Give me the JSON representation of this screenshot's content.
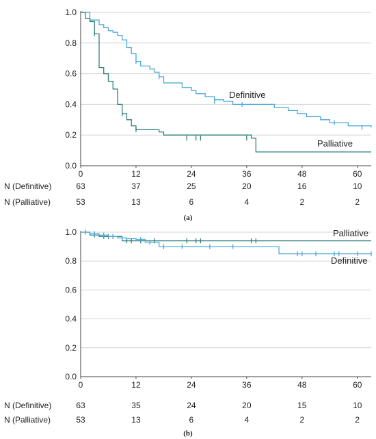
{
  "chart_data": [
    {
      "type": "line",
      "panel": "(a)",
      "xlim": [
        0,
        63
      ],
      "ylim": [
        0,
        1.0
      ],
      "xticks": [
        "0",
        "12",
        "24",
        "36",
        "48",
        "60"
      ],
      "yticks": [
        "0.0",
        "0.2",
        "0.4",
        "0.6",
        "0.8",
        "1.0"
      ],
      "grid": "horizontal",
      "step": true,
      "series": [
        {
          "name": "Definitive",
          "color": "#4aa8d8",
          "x": [
            0,
            2,
            4,
            5,
            6,
            7,
            8,
            9,
            10,
            11,
            12,
            13,
            15,
            16,
            17,
            18,
            20,
            22,
            24,
            25,
            27,
            29,
            31,
            33,
            35,
            37,
            39,
            42,
            45,
            47,
            49,
            52,
            54,
            58,
            63
          ],
          "y": [
            1.0,
            0.95,
            0.92,
            0.9,
            0.88,
            0.87,
            0.85,
            0.82,
            0.77,
            0.73,
            0.68,
            0.65,
            0.63,
            0.61,
            0.58,
            0.54,
            0.54,
            0.51,
            0.49,
            0.47,
            0.45,
            0.43,
            0.42,
            0.4,
            0.4,
            0.4,
            0.4,
            0.38,
            0.36,
            0.34,
            0.32,
            0.3,
            0.28,
            0.26,
            0.25
          ],
          "censored": [
            [
              12,
              0.68
            ],
            [
              17,
              0.58
            ],
            [
              29,
              0.42
            ],
            [
              35,
              0.4
            ],
            [
              55,
              0.28
            ],
            [
              61,
              0.25
            ]
          ]
        },
        {
          "name": "Palliative",
          "color": "#2e7f7a",
          "x": [
            0,
            1,
            2,
            3,
            4,
            5,
            6,
            7,
            8,
            9,
            10,
            11,
            12,
            17,
            18,
            37,
            38,
            63
          ],
          "y": [
            1.0,
            0.96,
            0.94,
            0.86,
            0.64,
            0.6,
            0.55,
            0.5,
            0.4,
            0.34,
            0.3,
            0.26,
            0.235,
            0.22,
            0.2,
            0.18,
            0.09,
            0.09
          ],
          "censored": [
            [
              3,
              0.86
            ],
            [
              9,
              0.34
            ],
            [
              12,
              0.235
            ],
            [
              23,
              0.18
            ],
            [
              25,
              0.18
            ],
            [
              26,
              0.18
            ],
            [
              36,
              0.18
            ]
          ]
        }
      ],
      "risk_table": {
        "rows": [
          {
            "label": "N (Definitive)",
            "values": [
              "63",
              "37",
              "25",
              "20",
              "16",
              "10"
            ]
          },
          {
            "label": "N (Palliative)",
            "values": [
              "53",
              "13",
              "6",
              "4",
              "2",
              "2"
            ]
          }
        ]
      }
    },
    {
      "type": "line",
      "panel": "(b)",
      "xlim": [
        0,
        63
      ],
      "ylim": [
        0,
        1.0
      ],
      "xticks": [
        "0",
        "12",
        "24",
        "36",
        "48",
        "60"
      ],
      "yticks": [
        "0.0",
        "0.2",
        "0.4",
        "0.6",
        "0.8",
        "1.0"
      ],
      "grid": "horizontal",
      "step": true,
      "series": [
        {
          "name": "Palliative",
          "color": "#2e7f7a",
          "x": [
            0,
            2,
            4,
            9,
            63
          ],
          "y": [
            1.0,
            0.98,
            0.97,
            0.94,
            0.94
          ],
          "censored": [
            [
              1,
              1.0
            ],
            [
              3,
              0.98
            ],
            [
              5,
              0.97
            ],
            [
              6,
              0.97
            ],
            [
              7,
              0.97
            ],
            [
              10,
              0.94
            ],
            [
              11,
              0.94
            ],
            [
              13,
              0.94
            ],
            [
              16,
              0.94
            ],
            [
              23,
              0.94
            ],
            [
              25,
              0.94
            ],
            [
              26,
              0.94
            ],
            [
              37,
              0.94
            ],
            [
              38,
              0.94
            ]
          ]
        },
        {
          "name": "Definitive",
          "color": "#4aa8d8",
          "x": [
            0,
            2,
            4,
            6,
            8,
            10,
            12,
            14,
            17,
            43,
            63
          ],
          "y": [
            1.0,
            0.99,
            0.98,
            0.97,
            0.96,
            0.955,
            0.95,
            0.93,
            0.9,
            0.85,
            0.85
          ],
          "censored": [
            [
              1,
              1.0
            ],
            [
              3,
              0.99
            ],
            [
              5,
              0.98
            ],
            [
              7,
              0.97
            ],
            [
              9,
              0.96
            ],
            [
              13,
              0.95
            ],
            [
              15,
              0.93
            ],
            [
              18,
              0.9
            ],
            [
              22,
              0.9
            ],
            [
              28,
              0.9
            ],
            [
              33,
              0.9
            ],
            [
              47,
              0.85
            ],
            [
              48,
              0.85
            ],
            [
              51,
              0.85
            ],
            [
              55,
              0.85
            ],
            [
              56,
              0.85
            ],
            [
              60,
              0.85
            ],
            [
              63,
              0.85
            ]
          ]
        }
      ],
      "risk_table": {
        "rows": [
          {
            "label": "N (Definitive)",
            "values": [
              "63",
              "35",
              "24",
              "20",
              "15",
              "10"
            ]
          },
          {
            "label": "N (Palliative)",
            "values": [
              "53",
              "13",
              "6",
              "4",
              "2",
              "2"
            ]
          }
        ]
      }
    }
  ]
}
